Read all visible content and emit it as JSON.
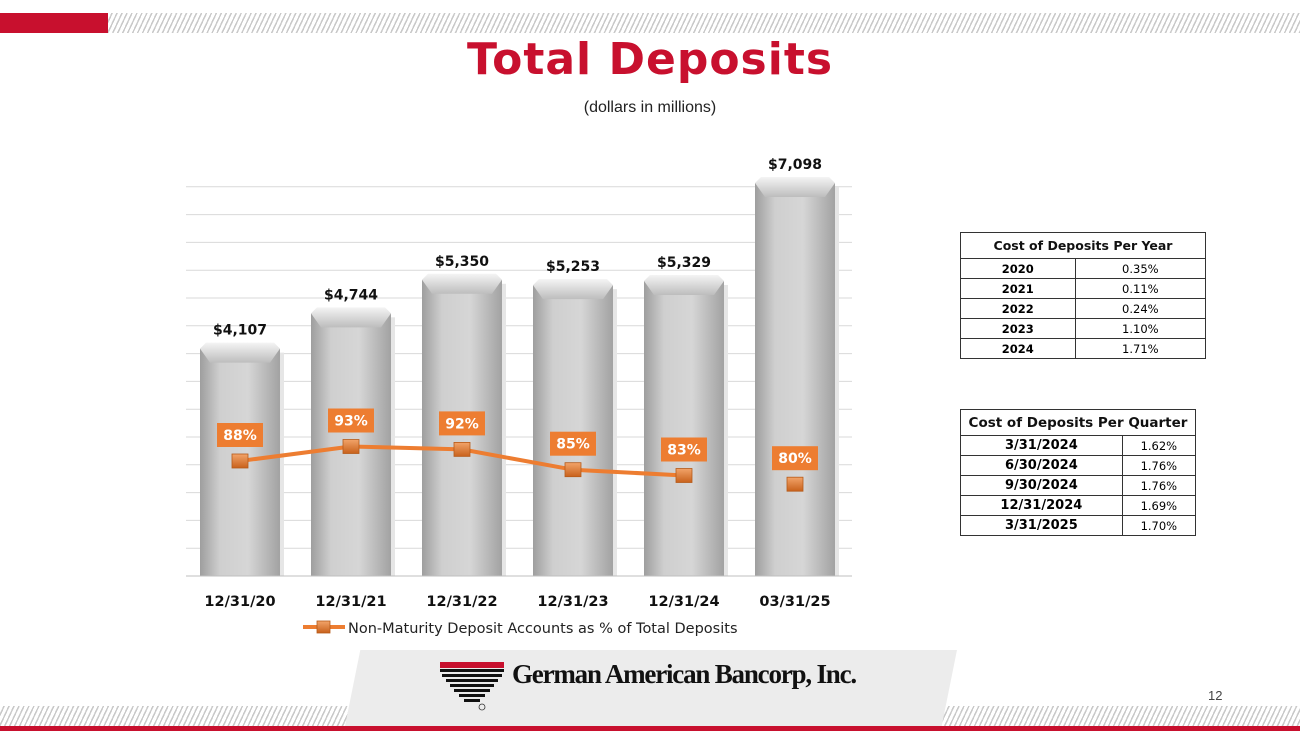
{
  "slide": {
    "title": "Total Deposits",
    "subtitle": "(dollars in millions)",
    "page_number": "12",
    "company": "German American Bancorp, Inc."
  },
  "colors": {
    "brand_red": "#c8102e",
    "bar_gray": "#c6c6c6",
    "line_orange": "#ed7d31"
  },
  "chart_data": {
    "type": "bar",
    "categories": [
      "12/31/20",
      "12/31/21",
      "12/31/22",
      "12/31/23",
      "12/31/24",
      "03/31/25"
    ],
    "series": [
      {
        "values": [
          4107,
          4744,
          5350,
          5253,
          5329,
          7098
        ],
        "labels": [
          "$4,107",
          "$4,744",
          "$5,350",
          "$5,253",
          "$5,329",
          "$7,098"
        ]
      },
      {
        "name": "Non-Maturity Deposit Accounts as % of Total Deposits",
        "type": "line",
        "values": [
          88,
          93,
          92,
          85,
          83,
          80
        ],
        "labels": [
          "88%",
          "93%",
          "92%",
          "85%",
          "83%",
          "80%"
        ]
      }
    ],
    "legend": "bottom",
    "grid": true
  },
  "tables": {
    "per_year": {
      "header": "Cost of Deposits Per Year",
      "rows": [
        {
          "period": "2020",
          "value": "0.35%"
        },
        {
          "period": "2021",
          "value": "0.11%"
        },
        {
          "period": "2022",
          "value": "0.24%"
        },
        {
          "period": "2023",
          "value": "1.10%"
        },
        {
          "period": "2024",
          "value": "1.71%"
        }
      ]
    },
    "per_quarter": {
      "header": "Cost of Deposits Per Quarter",
      "rows": [
        {
          "period": "3/31/2024",
          "value": "1.62%"
        },
        {
          "period": "6/30/2024",
          "value": "1.76%"
        },
        {
          "period": "9/30/2024",
          "value": "1.76%"
        },
        {
          "period": "12/31/2024",
          "value": "1.69%"
        },
        {
          "period": "3/31/2025",
          "value": "1.70%"
        }
      ]
    }
  }
}
